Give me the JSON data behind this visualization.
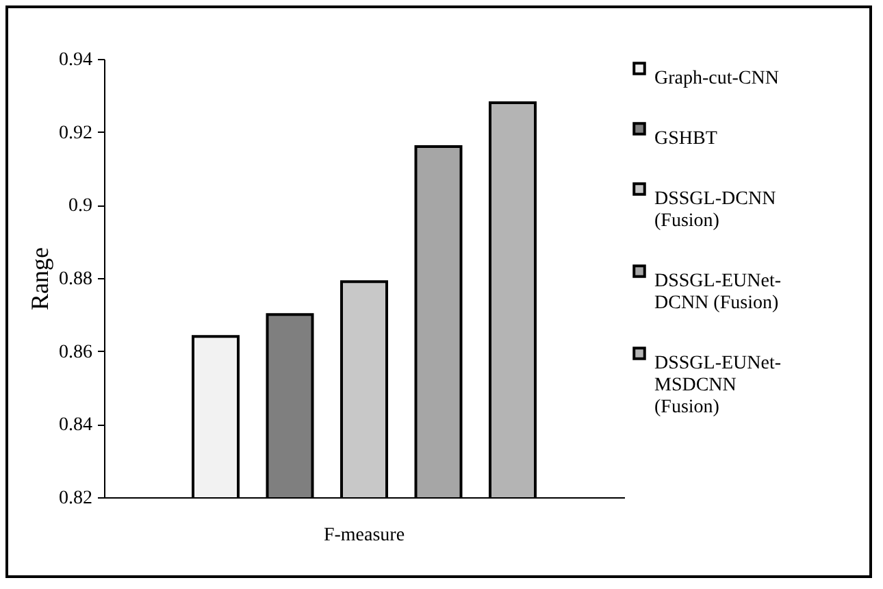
{
  "chart_data": {
    "type": "bar",
    "ylabel": "Range",
    "categories": [
      "F-measure"
    ],
    "series": [
      {
        "name": "Graph-cut-CNN",
        "color": "#f2f2f2",
        "values": [
          0.864
        ]
      },
      {
        "name": "GSHBT",
        "color": "#7f7f7f",
        "values": [
          0.87
        ]
      },
      {
        "name": "DSSGL-DCNN (Fusion)",
        "color": "#c8c8c8",
        "values": [
          0.879
        ]
      },
      {
        "name": "DSSGL-EUNet-DCNN (Fusion)",
        "color": "#a6a6a6",
        "values": [
          0.916
        ]
      },
      {
        "name": "DSSGL-EUNet-MSDCNN (Fusion)",
        "color": "#b4b4b4",
        "values": [
          0.928
        ]
      }
    ],
    "ylim": [
      0.82,
      0.94
    ],
    "yticks": [
      0.82,
      0.84,
      0.86,
      0.88,
      {
        "value": 0.9,
        "label": "0.9"
      },
      0.92,
      0.94
    ],
    "grid": false,
    "legend": "right"
  }
}
